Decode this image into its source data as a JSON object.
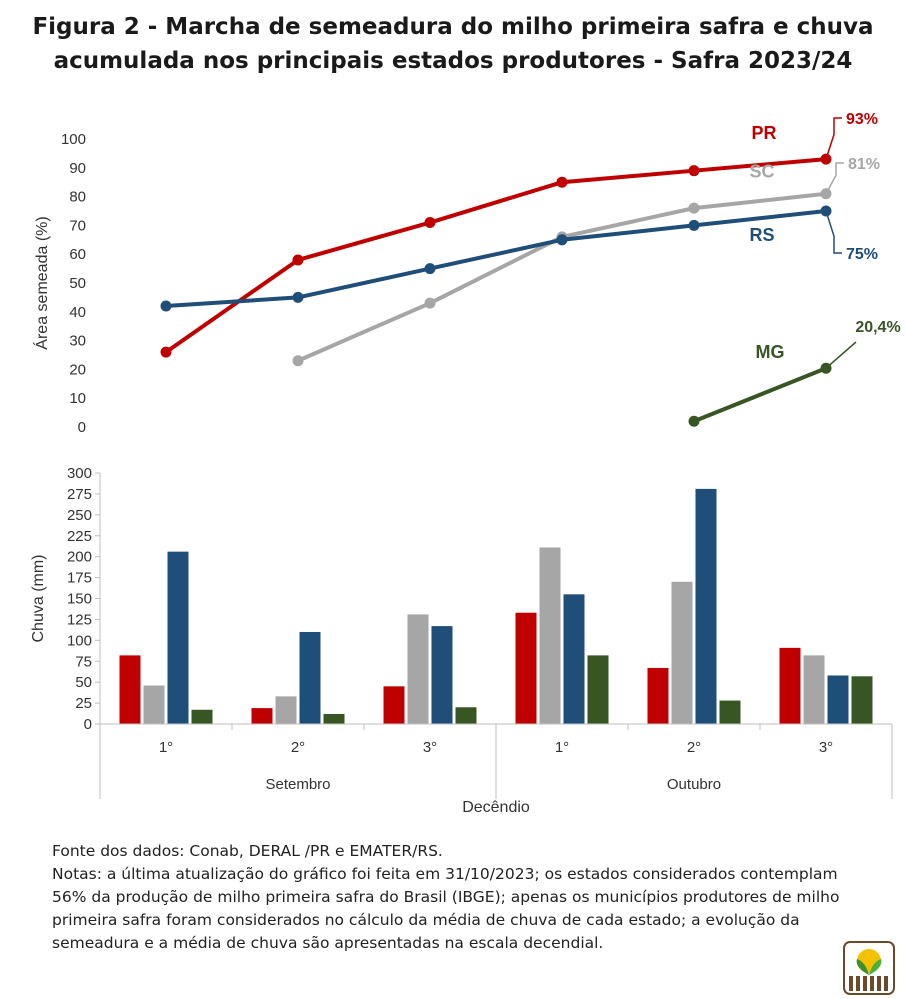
{
  "title": {
    "line1": "Figura 2 - Marcha de semeadura do milho primeira safra e chuva",
    "line2": "acumulada nos principais estados produtores - Safra 2023/24"
  },
  "colors": {
    "PR": "#c00000",
    "SC": "#a6a6a6",
    "RS": "#1f4e79",
    "MG": "#375623",
    "axis": "#bfbfbf"
  },
  "chart_data": [
    {
      "type": "line",
      "ylabel": "Área semeada (%)",
      "ylim": [
        0,
        100
      ],
      "yticks": [
        0,
        10,
        20,
        30,
        40,
        50,
        60,
        70,
        80,
        90,
        100
      ],
      "categories": [
        "Setembro 1°",
        "Setembro 2°",
        "Setembro 3°",
        "Outubro 1°",
        "Outubro 2°",
        "Outubro 3°"
      ],
      "grid": false,
      "series": [
        {
          "name": "PR",
          "values": [
            26,
            58,
            71,
            85,
            89,
            93
          ],
          "end_label": "93%"
        },
        {
          "name": "SC",
          "values": [
            null,
            23,
            43,
            66,
            76,
            81
          ],
          "end_label": "81%"
        },
        {
          "name": "RS",
          "values": [
            42,
            45,
            55,
            65,
            70,
            75
          ],
          "end_label": "75%"
        },
        {
          "name": "MG",
          "values": [
            null,
            null,
            null,
            null,
            2,
            20.4
          ],
          "end_label": "20,4%"
        }
      ]
    },
    {
      "type": "bar",
      "ylabel": "Chuva (mm)",
      "xlabel": "Decêndio",
      "ylim": [
        0,
        300
      ],
      "yticks": [
        0,
        25,
        50,
        75,
        100,
        125,
        150,
        175,
        200,
        225,
        250,
        275,
        300
      ],
      "groups": [
        "Setembro",
        "Outubro"
      ],
      "categories": [
        "1°",
        "2°",
        "3°",
        "1°",
        "2°",
        "3°"
      ],
      "series": [
        {
          "name": "PR",
          "values": [
            82,
            19,
            45,
            133,
            67,
            91
          ]
        },
        {
          "name": "SC",
          "values": [
            46,
            33,
            131,
            211,
            170,
            82
          ]
        },
        {
          "name": "RS",
          "values": [
            206,
            110,
            117,
            155,
            281,
            58
          ]
        },
        {
          "name": "MG",
          "values": [
            17,
            12,
            20,
            82,
            28,
            57
          ]
        }
      ]
    }
  ],
  "notes": {
    "source": "Fonte dos dados: Conab, DERAL /PR e EMATER/RS.",
    "text": "Notas: a última atualização do gráfico foi feita em 31/10/2023; os estados considerados contemplam 56% da produção de milho primeira safra do Brasil (IBGE); apenas os municípios produtores de milho primeira safra foram considerados no cálculo da média de chuva de cada estado; a evolução da semeadura e a média de chuva são apresentadas na escala decendial."
  },
  "logo": {
    "icon": "sprout-field-logo-icon"
  }
}
